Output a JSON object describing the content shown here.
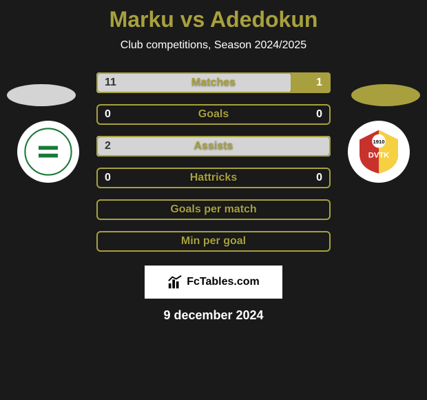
{
  "title": {
    "player1": "Marku",
    "player2": "Adedokun",
    "color": "#a8a03e",
    "fontsize": 32
  },
  "subtitle": {
    "text": "Club competitions, Season 2024/2025",
    "fontsize": 16,
    "color": "#ffffff"
  },
  "background_color": "#1a1a1a",
  "player_colors": {
    "left": "#d4d4d4",
    "right": "#a8a03e"
  },
  "badges": {
    "left": {
      "semantic": "club-crest-left",
      "primary_color": "#1a7a3a",
      "secondary_color": "#ffffff"
    },
    "right": {
      "semantic": "club-crest-right",
      "primary_color": "#c8322d",
      "secondary_color": "#f5d142"
    }
  },
  "bars": [
    {
      "label": "Matches",
      "left_value": "11",
      "right_value": "1",
      "left_num": 11,
      "right_num": 1,
      "left_pct": 83,
      "right_pct": 17,
      "border_color": "#a8a03e"
    },
    {
      "label": "Goals",
      "left_value": "0",
      "right_value": "0",
      "left_num": 0,
      "right_num": 0,
      "left_pct": 0,
      "right_pct": 0,
      "border_color": "#a8a03e"
    },
    {
      "label": "Assists",
      "left_value": "2",
      "right_value": "",
      "left_num": 2,
      "right_num": 0,
      "left_pct": 100,
      "right_pct": 0,
      "border_color": "#a8a03e"
    },
    {
      "label": "Hattricks",
      "left_value": "0",
      "right_value": "0",
      "left_num": 0,
      "right_num": 0,
      "left_pct": 0,
      "right_pct": 0,
      "border_color": "#a8a03e"
    },
    {
      "label": "Goals per match",
      "left_value": "",
      "right_value": "",
      "left_num": 0,
      "right_num": 0,
      "left_pct": 0,
      "right_pct": 0,
      "border_color": "#a8a03e"
    },
    {
      "label": "Min per goal",
      "left_value": "",
      "right_value": "",
      "left_num": 0,
      "right_num": 0,
      "left_pct": 0,
      "right_pct": 0,
      "border_color": "#a8a03e"
    }
  ],
  "brand": {
    "icon": "chart-icon",
    "text": "FcTables.com",
    "bg": "#ffffff",
    "fg": "#000000"
  },
  "date": {
    "text": "9 december 2024",
    "fontsize": 18
  },
  "bar_style": {
    "height": 30,
    "gap": 16,
    "border_radius": 6,
    "label_fontsize": 16,
    "label_color": "#a8a03e",
    "value_fontsize": 16,
    "fill_left_color": "#d4d4d4",
    "fill_right_color": "#a8a03e"
  }
}
